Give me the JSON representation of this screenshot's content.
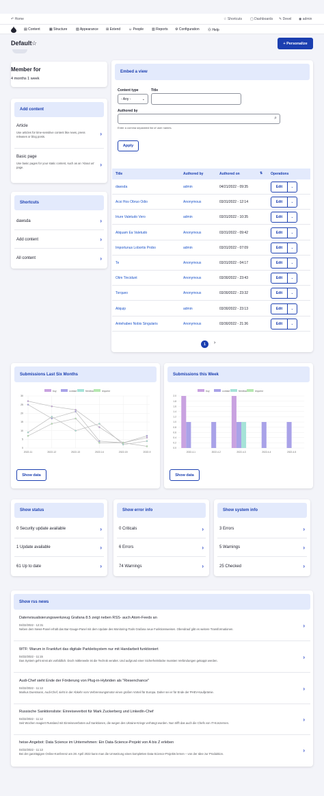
{
  "topbar": {
    "home": "Home",
    "shortcuts": "Shortcuts",
    "dashboards": "Dashboards",
    "devel": "Devel",
    "user": "admin"
  },
  "menu": [
    "Content",
    "Structure",
    "Appearance",
    "Extend",
    "People",
    "Reports",
    "Configuration",
    "Help"
  ],
  "page": {
    "title": "Default",
    "personalize": "+ Personalize"
  },
  "member": {
    "title": "Member for",
    "value": "4 months 1 week"
  },
  "add_content": {
    "header": "Add content",
    "items": [
      {
        "title": "Article",
        "desc": "Use articles for time-sensitive content like news, press releases or blog posts."
      },
      {
        "title": "Basic page",
        "desc": "Use basic pages for your static content, such as an 'About us' page."
      }
    ]
  },
  "shortcuts": {
    "header": "Shortcuts",
    "items": [
      "dawsda",
      "Add content",
      "All content"
    ]
  },
  "view": {
    "header": "Embed a view",
    "ct_label": "Content type",
    "ct_value": "- Any -",
    "title_label": "Title",
    "author_label": "Authored by",
    "author_help": "Enter a comma separated list of user names.",
    "apply": "Apply"
  },
  "table": {
    "cols": [
      "Title",
      "Authored by",
      "Authored on",
      "Operations"
    ],
    "rows": [
      [
        "dawsda",
        "admin",
        "04/21/2022 - 09:35"
      ],
      [
        "Acsi Hos Obruo Odio",
        "Anonymous",
        "03/31/2022 - 12:14"
      ],
      [
        "Iriure Valetudo Vero",
        "admin",
        "03/31/2022 - 10:35"
      ],
      [
        "Aliquam Ea Valetudo",
        "Anonymous",
        "03/31/2022 - 09:42"
      ],
      [
        "Importunus Lobortis Probo",
        "admin",
        "03/31/2022 - 07:09"
      ],
      [
        "Te",
        "Anonymous",
        "03/31/2022 - 04:17"
      ],
      [
        "Olim Tincidunt",
        "Anonymous",
        "03/30/2022 - 23:43"
      ],
      [
        "Torqueo",
        "Anonymous",
        "03/30/2022 - 23:32"
      ],
      [
        "Aliquip",
        "admin",
        "03/30/2022 - 23:13"
      ],
      [
        "Antehabeo Nobis Singularis",
        "Anonymous",
        "03/30/2022 - 21:36"
      ]
    ],
    "edit": "Edit",
    "page": "1",
    "next": "›"
  },
  "chart_data": [
    {
      "type": "line",
      "title": "Submissions Last Six Months",
      "legend": [
        "buy",
        "contact",
        "feedback",
        "request"
      ],
      "categories": [
        "2022-11",
        "2022-12",
        "2022-13",
        "2022-14",
        "2022-15",
        "2022-9"
      ],
      "ylim": [
        0,
        30
      ],
      "yticks": [
        0,
        5,
        10,
        15,
        20,
        25,
        30
      ],
      "series": [
        {
          "name": "buy",
          "values": [
            27,
            24,
            22,
            12,
            3,
            6
          ]
        },
        {
          "name": "contact",
          "values": [
            25,
            17,
            21,
            4,
            3,
            7
          ]
        },
        {
          "name": "feedback",
          "values": [
            9,
            18,
            10,
            14,
            2,
            4
          ]
        },
        {
          "name": "request",
          "values": [
            7,
            14,
            17,
            3,
            3,
            1
          ]
        }
      ],
      "show_data": "Show data"
    },
    {
      "type": "bar",
      "title": "Submissions this Week",
      "legend": [
        "buy",
        "contact",
        "feedback",
        "request"
      ],
      "categories": [
        "2022-4-1",
        "2022-4-2",
        "2022-4-3",
        "2022-4-4",
        "2022-4-5"
      ],
      "ylim": [
        0,
        2.0
      ],
      "yticks": [
        0,
        0.2,
        0.4,
        0.6,
        0.8,
        1.0,
        1.2,
        1.4,
        1.6,
        1.8,
        2.0
      ],
      "series": [
        {
          "name": "buy",
          "values": [
            2,
            0,
            2,
            0,
            0
          ]
        },
        {
          "name": "contact",
          "values": [
            1,
            1,
            1,
            1,
            1
          ]
        },
        {
          "name": "feedback",
          "values": [
            0,
            0,
            1,
            0,
            0
          ]
        },
        {
          "name": "request",
          "values": [
            0,
            0,
            0,
            0,
            0
          ]
        }
      ],
      "show_data": "Show data"
    }
  ],
  "colors": {
    "buy": "#c9a2e0",
    "contact": "#a9a2e8",
    "feedback": "#a6e3d8",
    "request": "#b6e8b0",
    "accent": "#2b47c7"
  },
  "status": {
    "header": "Show status",
    "items": [
      "0 Security update available",
      "1 Update available",
      "61 Up to date"
    ]
  },
  "errors": {
    "header": "Show error info",
    "items": [
      "0 Criticals",
      "6 Errors",
      "74 Warnings"
    ]
  },
  "sysinfo": {
    "header": "Show system info",
    "items": [
      "3 Errors",
      "5 Warnings",
      "25 Checked"
    ]
  },
  "rss": {
    "header": "Show rss news",
    "items": [
      {
        "title": "Datenvisualisierungswerkzeug Grafana 8.5 zeigt neben RSS- auch Atom-Feeds an",
        "date": "04/22/2022 - 12:31",
        "summary": "Neben dem News-Panel erhält das Bar-Gauge-Panel mit dem Update des Monitoring-Tools Grafana neue Funktionsweisen. Obendrauf gibt es weitere Transformationen."
      },
      {
        "title": "WTF: Warum in Frankfurt das digitale Parkleitsystem nur mit Handarbeit funktioniert",
        "date": "04/22/2022 - 11:15",
        "summary": "Das System geht einst als vorbildlich. Doch mittlerweile ist die Technik veraltet. Und aufgrund einer Sicherheitslücke mussten Verbindungen gekappt werden."
      },
      {
        "title": "Audi-Chef sieht Ende der Förderung von Plug-in-Hybriden als \"Riesenchance\"",
        "date": "04/22/2022 - 11:13",
        "summary": "Markus Duesmann, Audi-Chef, sieht in der Abkehr vom Verbrennungsmotor einen großen Vorteil für Europa. Daher sei er für Ende der PHEV-Kaufprämie."
      },
      {
        "title": "Russische Sanktionsliste: Einreiseverbot für Mark Zuckerberg und LinkedIn-Chef",
        "date": "04/22/2022 - 11:12",
        "summary": "Seit Wochen reagiert Russland mit Einreiseverboten auf Sanktionen, die wegen des Ukraine-Kriegs verhängt wurden. Nun trifft das auch die Chefs von IT-Konzernen."
      },
      {
        "title": "heise-Angebot: Data Science im Unternehmen: Ein Data-Science-Projekt von A bis Z erleben",
        "date": "04/22/2022 - 11:13",
        "summary": "Bei der ganztägigen Online-Konferenz am 28. April 2022 kann man die Umsetzung eines kompletten Data-Science-Projekts lernen – von der Idee zur Produktion."
      }
    ]
  }
}
